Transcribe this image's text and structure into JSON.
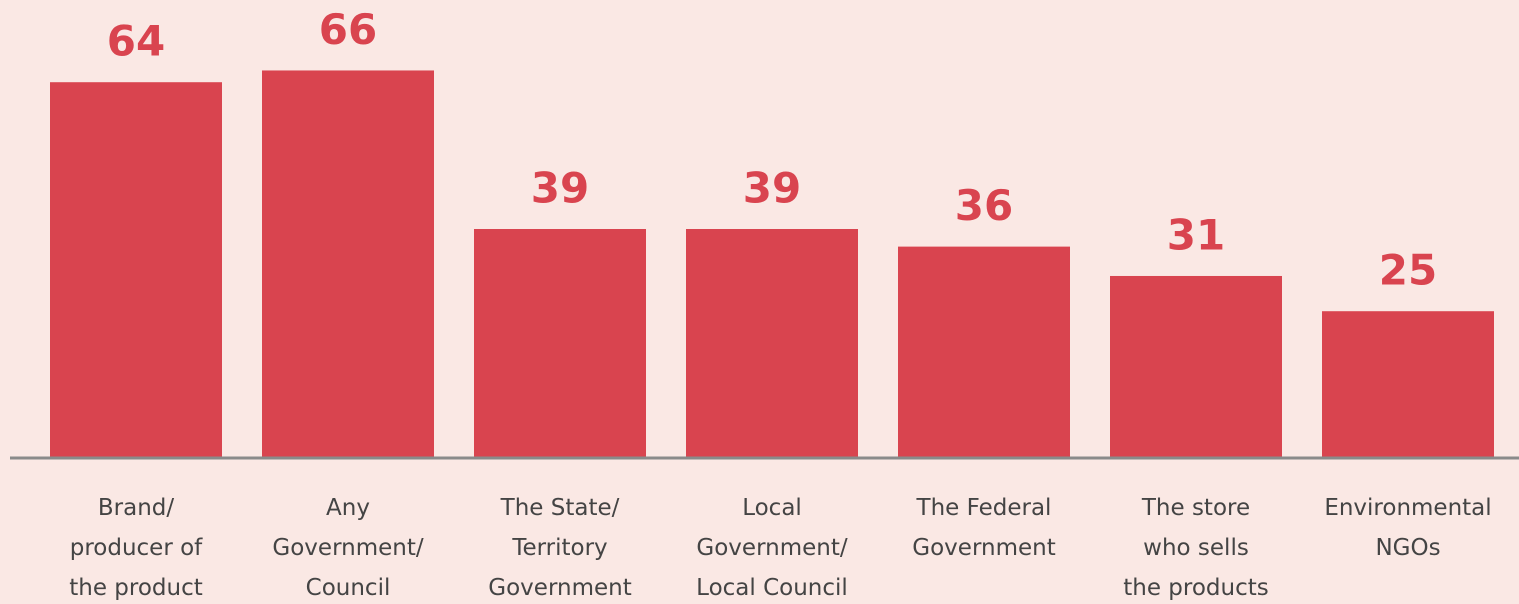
{
  "chart_data": {
    "type": "bar",
    "categories": [
      "Brand/\nproducer of\nthe product",
      "Any\nGovernment/\nCouncil",
      "The State/\nTerritory\nGovernment",
      "Local\nGovernment/\nLocal Council",
      "The Federal\nGovernment",
      "The store\nwho sells\nthe products",
      "Environmental\nNGOs"
    ],
    "values": [
      64,
      66,
      39,
      39,
      36,
      31,
      25
    ],
    "color": "#d9444f",
    "ylim": [
      0,
      78
    ]
  }
}
